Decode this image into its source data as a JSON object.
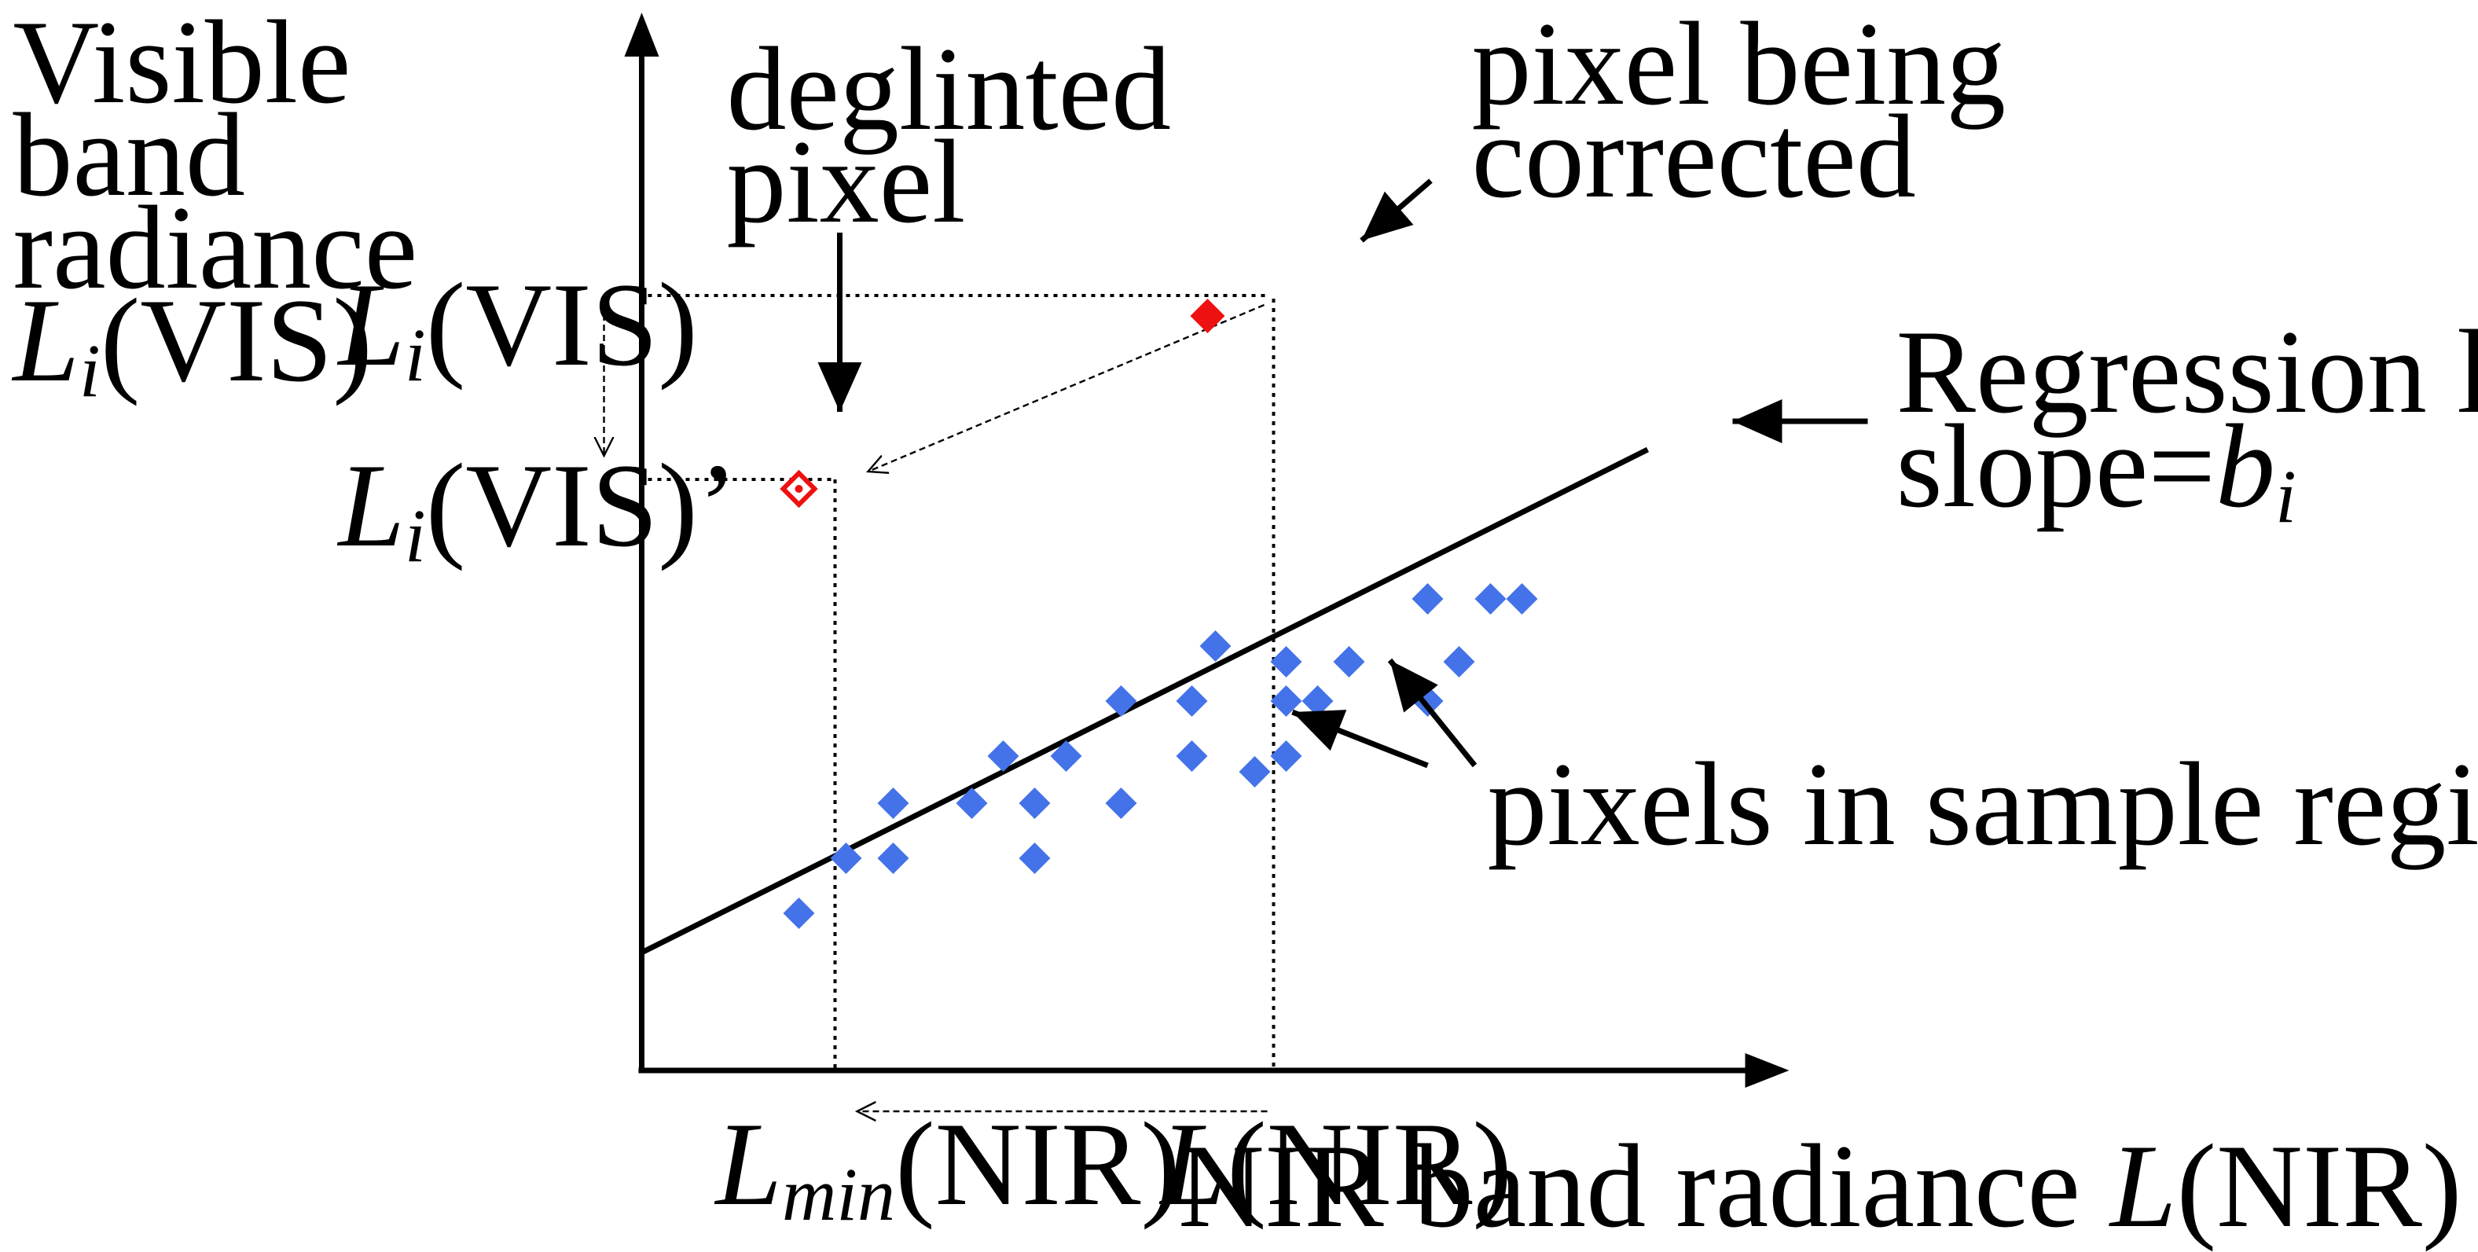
{
  "y_axis_title": {
    "line1": "Visible",
    "line2": "band",
    "line3": "radiance",
    "line4_var": "L",
    "line4_sub": "i",
    "line4_rest": "(VIS)"
  },
  "x_axis_title": {
    "prefix": "NIR band radiance ",
    "var": "L",
    "rest": "(NIR)"
  },
  "tick_labels": {
    "li_vis": {
      "var": "L",
      "sub": "i",
      "rest": "(VIS)"
    },
    "li_vis_prime": {
      "var": "L",
      "sub": "i",
      "rest": "(VIS)’"
    },
    "lmin_nir": {
      "var": "L",
      "sub": "min",
      "rest": "(NIR)"
    },
    "l_nir": {
      "var": "L",
      "rest": "(NIR)"
    }
  },
  "annotations": {
    "deglinted_line1": "deglinted",
    "deglinted_line2": "pixel",
    "corrected_line1": "pixel being",
    "corrected_line2": "corrected",
    "regression_line1": "Regression line,",
    "regression_line2_prefix": "slope=",
    "regression_line2_var": "b",
    "regression_line2_sub": "i",
    "sample_region": "pixels in sample region"
  },
  "colors": {
    "sample_points": "#4472E8",
    "corrected_point": "#EE1111",
    "axes": "#000000"
  },
  "chart_data": {
    "type": "scatter",
    "series": [
      {
        "values": [
          [
            1.0,
            1.0
          ],
          [
            1.3,
            1.35
          ],
          [
            1.6,
            1.7
          ],
          [
            1.6,
            1.35
          ],
          [
            2.1,
            1.7
          ],
          [
            2.3,
            2.0
          ],
          [
            2.5,
            1.7
          ],
          [
            2.5,
            1.35
          ],
          [
            2.7,
            2.0
          ],
          [
            3.05,
            2.35
          ],
          [
            3.05,
            1.7
          ],
          [
            3.5,
            2.35
          ],
          [
            3.5,
            2.0
          ],
          [
            3.65,
            2.7
          ],
          [
            3.9,
            1.9
          ],
          [
            4.1,
            2.6
          ],
          [
            4.1,
            2.35
          ],
          [
            4.1,
            2.0
          ],
          [
            4.3,
            2.35
          ],
          [
            4.5,
            2.6
          ],
          [
            5.0,
            2.35
          ],
          [
            5.0,
            3.0
          ],
          [
            5.2,
            2.6
          ],
          [
            5.4,
            3.0
          ],
          [
            5.6,
            3.0
          ]
        ]
      }
    ],
    "special_points": {
      "corrected": [
        3.6,
        4.8
      ],
      "deglinted": [
        1.0,
        3.7
      ]
    },
    "regression_line": {
      "intercept": 0.75,
      "slope": 0.5,
      "x_range": [
        0,
        6.4
      ]
    },
    "xlim": [
      0,
      7.0
    ],
    "ylim": [
      0,
      6.0
    ],
    "grid": false
  }
}
